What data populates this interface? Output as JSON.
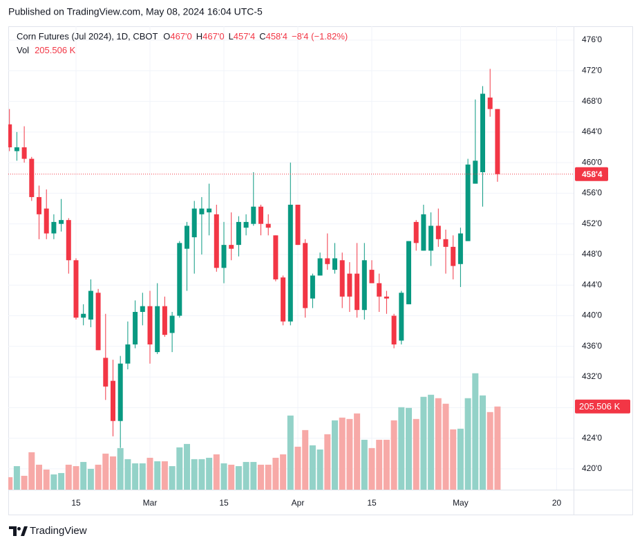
{
  "header": {
    "published": "Published on TradingView.com, May 08, 2024 16:04 UTC-5"
  },
  "brand": "TradingView",
  "chart_data": {
    "type": "candlestick",
    "title": "Corn Futures (Jul 2024), 1D, CBOT",
    "legend": {
      "open": {
        "key": "O",
        "value": 467,
        "label": "467'0"
      },
      "high": {
        "key": "H",
        "value": 467,
        "label": "467'0"
      },
      "low": {
        "key": "L",
        "value": 457.5,
        "label": "457'4"
      },
      "close": {
        "key": "C",
        "value": 458.5,
        "label": "458'4"
      },
      "change": "−8'4 (−1.82%)",
      "volume": {
        "key": "Vol",
        "value": 205506,
        "label": "205.506 K"
      }
    },
    "categories": [
      null,
      null,
      null,
      null,
      null,
      null,
      null,
      null,
      null,
      "15",
      null,
      null,
      null,
      null,
      null,
      null,
      null,
      null,
      null,
      "Mar",
      null,
      null,
      null,
      null,
      null,
      null,
      null,
      null,
      null,
      "15",
      null,
      null,
      null,
      null,
      null,
      null,
      null,
      null,
      null,
      "Apr",
      null,
      null,
      null,
      null,
      null,
      null,
      null,
      null,
      null,
      "15",
      null,
      null,
      null,
      null,
      null,
      null,
      null,
      null,
      null,
      null,
      null,
      "May",
      null,
      null,
      null,
      null,
      null,
      null,
      null,
      null,
      null,
      null,
      null,
      null,
      "20"
    ],
    "open": [
      465,
      461.5,
      462,
      460.5,
      455.5,
      454,
      450.75,
      452,
      452.5,
      447.25,
      439.75,
      439.5,
      443,
      434.5,
      431.5,
      426.25,
      433.75,
      436.25,
      440.5,
      441.25,
      435.25,
      441.25,
      437.75,
      440,
      448.75,
      450.25,
      453.25,
      453.5,
      453.25,
      446.25,
      449.25,
      449.25,
      451.5,
      452,
      454.25,
      452,
      450.5,
      445,
      439.25,
      454.5,
      449.5,
      442.25,
      445.25,
      447.5,
      446,
      447.25,
      445.5,
      445.5,
      440.75,
      446,
      444.25,
      442.5,
      440,
      436.75,
      441.5,
      452.25,
      448.5,
      448.5,
      451.75,
      450,
      449,
      446.75,
      449.75,
      457.25,
      458.75,
      468.5,
      467,
      null,
      null,
      null,
      null,
      null,
      null,
      null,
      null
    ],
    "high": [
      467,
      464,
      464.75,
      460.75,
      457,
      456.5,
      453.25,
      455.25,
      452.75,
      447.5,
      441.5,
      444.75,
      443.5,
      440.25,
      434.25,
      434.75,
      439.25,
      442,
      443,
      443.25,
      444.25,
      442.5,
      440.5,
      449.75,
      452.25,
      455,
      455.5,
      457.25,
      454.5,
      452.25,
      453.5,
      453,
      453.25,
      458.75,
      454.5,
      453.25,
      450.5,
      445.25,
      460,
      454.5,
      450,
      445.5,
      448.25,
      450.75,
      449.5,
      448.25,
      447,
      449.5,
      449.5,
      447.25,
      445.5,
      443.25,
      440.25,
      443.25,
      449.75,
      452.5,
      454.5,
      453.5,
      454,
      451.25,
      450.5,
      451.5,
      460.5,
      468.25,
      470,
      472.25,
      467,
      null,
      null,
      null,
      null,
      null,
      null,
      null,
      null
    ],
    "low": [
      461.5,
      460.25,
      460,
      455,
      450,
      450,
      450,
      451,
      445.5,
      439.5,
      438.75,
      438.5,
      435.5,
      429,
      424.25,
      422.75,
      433,
      435.75,
      438.75,
      433.75,
      435,
      437.25,
      435.25,
      439.75,
      443.25,
      445.5,
      448,
      450.5,
      445.75,
      444.25,
      447.25,
      447.75,
      450.5,
      451.75,
      450.5,
      450.5,
      444.5,
      438.75,
      438.75,
      449.25,
      439.75,
      441,
      445.25,
      446,
      445.5,
      441,
      440.5,
      439.75,
      439.5,
      444.25,
      440.5,
      440.25,
      435.75,
      436.25,
      441.5,
      448.5,
      448.5,
      446.5,
      449,
      445.5,
      444.75,
      443.75,
      449.75,
      457.25,
      454.25,
      466,
      457.5,
      null,
      null,
      null,
      null,
      null,
      null,
      null,
      null
    ],
    "close": [
      462,
      462,
      460.5,
      455.5,
      453.25,
      450.75,
      452.25,
      452.5,
      447.25,
      439.75,
      440.25,
      443.25,
      435.5,
      430.75,
      426.25,
      433.75,
      436.25,
      440.5,
      441.25,
      436.25,
      441.25,
      437.5,
      440,
      449.5,
      451.75,
      454,
      454,
      454,
      446.25,
      449.25,
      448.75,
      452.25,
      452.25,
      454.25,
      452,
      451.5,
      444.75,
      439.25,
      454.5,
      449.25,
      441,
      445.25,
      447.5,
      446.75,
      447.5,
      442.5,
      442.5,
      440.75,
      447.25,
      444.25,
      442.5,
      442.25,
      436.25,
      443,
      449.75,
      449.5,
      453.25,
      451.75,
      450,
      449,
      446.5,
      450.75,
      459.75,
      460.25,
      469,
      467,
      458.5,
      null,
      null,
      null,
      null,
      null,
      null,
      null,
      null
    ],
    "volume": [
      30800,
      58200,
      34300,
      92500,
      61700,
      49700,
      37700,
      41100,
      61700,
      58200,
      68500,
      51400,
      61700,
      89100,
      82200,
      102800,
      75400,
      65100,
      65100,
      78800,
      70200,
      70200,
      58200,
      104500,
      113000,
      75400,
      75400,
      78800,
      87300,
      65100,
      61700,
      58200,
      68500,
      68500,
      61700,
      61700,
      78800,
      87300,
      183200,
      106200,
      147300,
      109600,
      99300,
      137000,
      171300,
      178100,
      174700,
      188400,
      123300,
      102800,
      123300,
      123300,
      171300,
      203800,
      202100,
      174700,
      229500,
      234600,
      226100,
      212400,
      149000,
      150700,
      226100,
      287700,
      232900,
      191800,
      205506,
      null,
      null,
      null,
      null,
      null,
      null,
      null,
      null
    ],
    "up_color": "#089981",
    "down_color": "#f23645",
    "up_volume_color": "#93d2c8",
    "down_volume_color": "#f7a9a7",
    "ylim": [
      417.28,
      477.81
    ],
    "yticks": [
      {
        "value": 420,
        "label": "420'0"
      },
      {
        "value": 424,
        "label": "424'0"
      },
      {
        "value": 428,
        "label": "428'0"
      },
      {
        "value": 432,
        "label": "432'0"
      },
      {
        "value": 436,
        "label": "436'0"
      },
      {
        "value": 440,
        "label": "440'0"
      },
      {
        "value": 444,
        "label": "444'0"
      },
      {
        "value": 448,
        "label": "448'0"
      },
      {
        "value": 452,
        "label": "452'0"
      },
      {
        "value": 456,
        "label": "456'0"
      },
      {
        "value": 460,
        "label": "460'0"
      },
      {
        "value": 464,
        "label": "464'0"
      },
      {
        "value": 468,
        "label": "468'0"
      },
      {
        "value": 472,
        "label": "472'0"
      },
      {
        "value": 476,
        "label": "476'0"
      }
    ],
    "volume_lim": [
      0,
      400000
    ],
    "last_price": {
      "value": 458.5,
      "label": "458'4"
    },
    "last_volume": {
      "value": 205506,
      "label": "205.506 K"
    },
    "grid": true
  }
}
